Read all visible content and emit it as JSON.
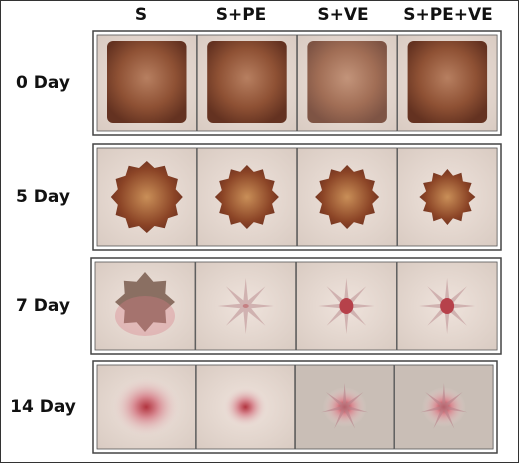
{
  "columns": [
    "S",
    "S+PE",
    "S+VE",
    "S+PE+VE"
  ],
  "rows": [
    "0 Day",
    "5 Day",
    "7 Day",
    "14 Day"
  ]
}
